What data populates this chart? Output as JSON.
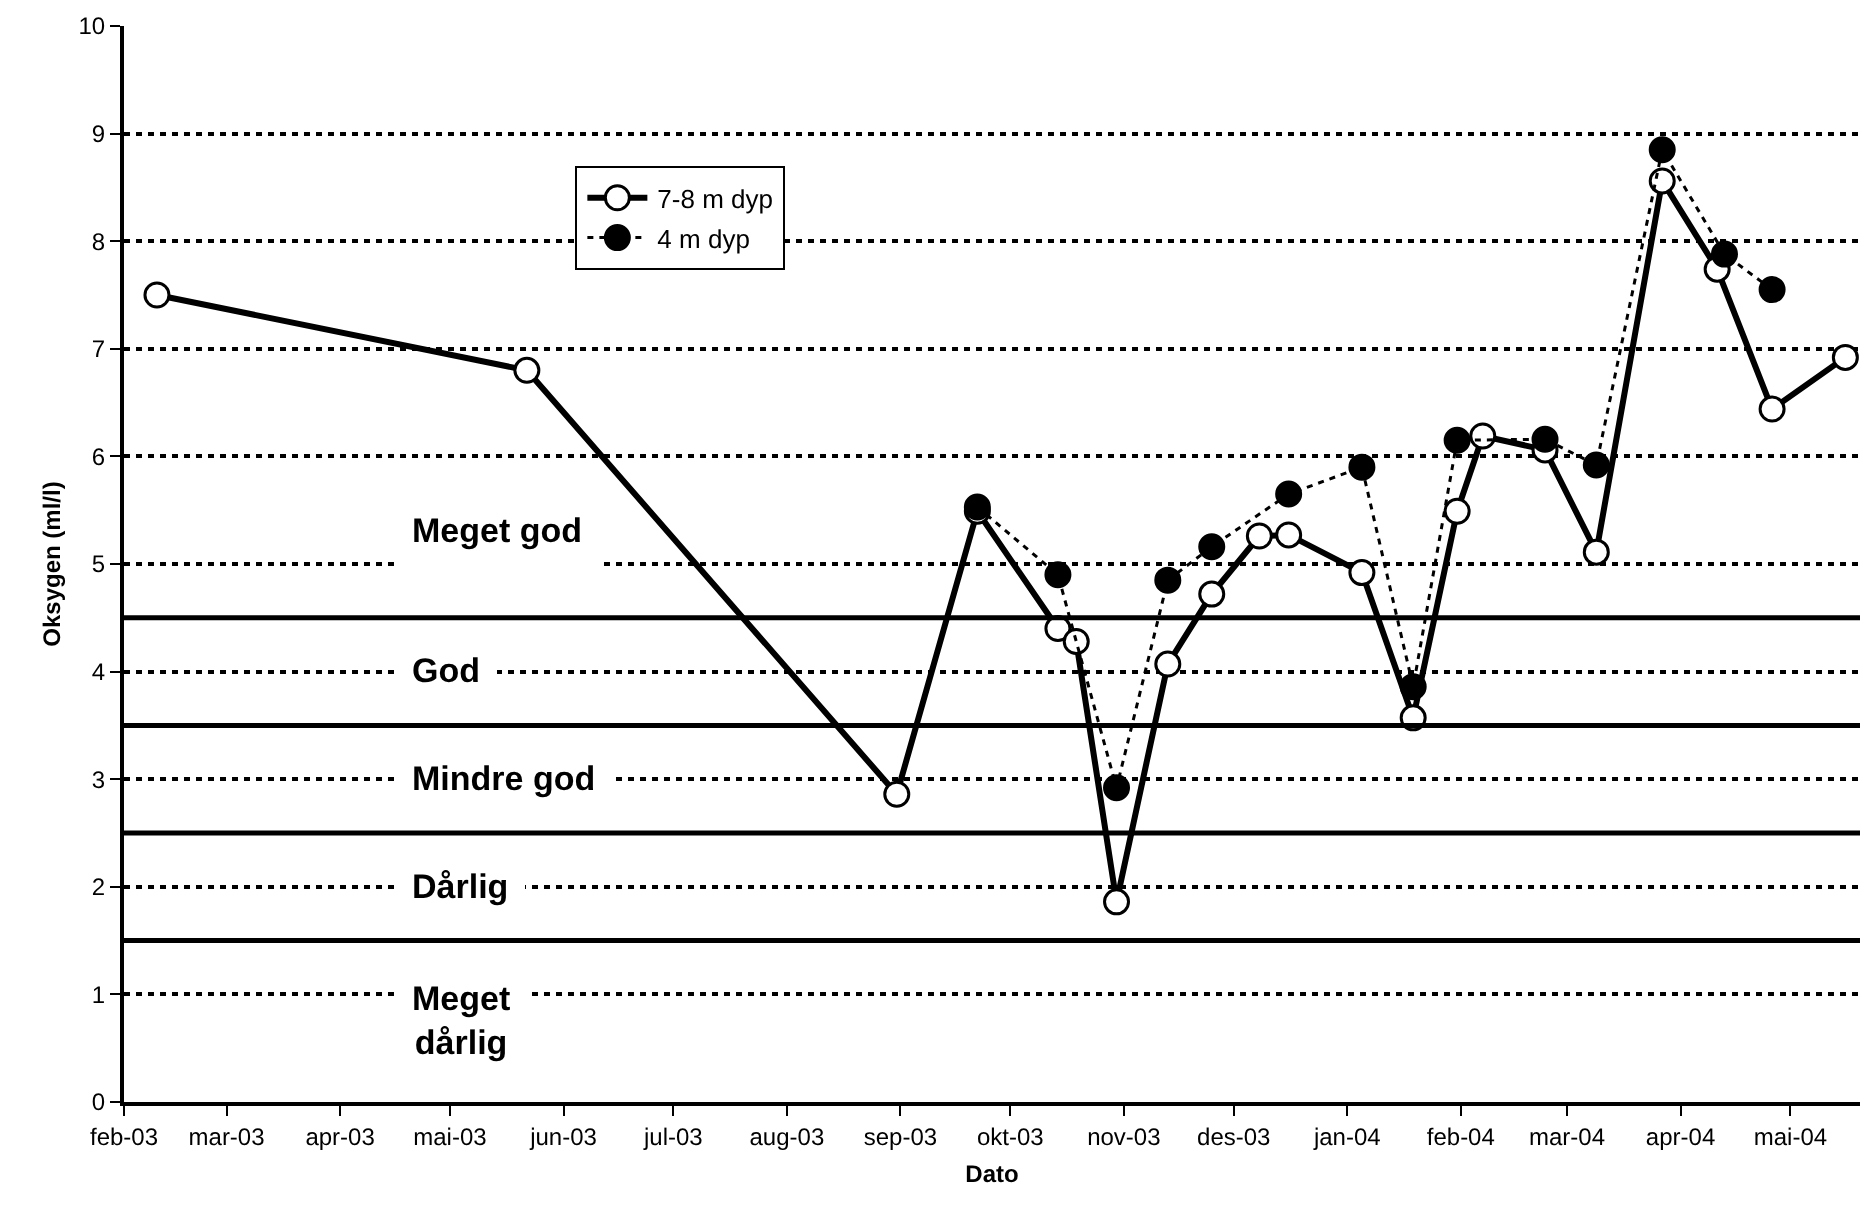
{
  "chart_data": {
    "type": "line",
    "xlabel": "Dato",
    "ylabel": "Oksygen (ml/l)",
    "xlim": [
      "2003-02-01",
      "2004-05-20"
    ],
    "xticks": [
      {
        "value": "2003-02-01",
        "label": "feb-03"
      },
      {
        "value": "2003-03-01",
        "label": "mar-03"
      },
      {
        "value": "2003-04-01",
        "label": "apr-03"
      },
      {
        "value": "2003-05-01",
        "label": "mai-03"
      },
      {
        "value": "2003-06-01",
        "label": "jun-03"
      },
      {
        "value": "2003-07-01",
        "label": "jul-03"
      },
      {
        "value": "2003-08-01",
        "label": "aug-03"
      },
      {
        "value": "2003-09-01",
        "label": "sep-03"
      },
      {
        "value": "2003-10-01",
        "label": "okt-03"
      },
      {
        "value": "2003-11-01",
        "label": "nov-03"
      },
      {
        "value": "2003-12-01",
        "label": "des-03"
      },
      {
        "value": "2004-01-01",
        "label": "jan-04"
      },
      {
        "value": "2004-02-01",
        "label": "feb-04"
      },
      {
        "value": "2004-03-01",
        "label": "mar-04"
      },
      {
        "value": "2004-04-01",
        "label": "apr-04"
      },
      {
        "value": "2004-05-01",
        "label": "mai-04"
      }
    ],
    "ylim": [
      0,
      10
    ],
    "yticks": [
      0,
      1,
      2,
      3,
      4,
      5,
      6,
      7,
      8,
      9,
      10
    ],
    "grid": "y",
    "legend": "top left",
    "marker": "circle",
    "series": [
      {
        "name": "7-8 m dyp",
        "color": "#000000",
        "line_style": "solid",
        "x": [
          "2003-02-10",
          "2003-05-22",
          "2003-08-31",
          "2003-09-22",
          "2003-10-14",
          "2003-10-19",
          "2003-10-30",
          "2003-11-13",
          "2003-11-25",
          "2003-12-08",
          "2003-12-16",
          "2004-01-05",
          "2004-01-19",
          "2004-01-31",
          "2004-02-07",
          "2004-02-24",
          "2004-03-09",
          "2004-03-27",
          "2004-04-11",
          "2004-04-26",
          "2004-05-16"
        ],
        "values": [
          7.5,
          6.8,
          2.86,
          5.49,
          4.4,
          4.28,
          1.86,
          4.07,
          4.72,
          5.26,
          5.27,
          4.92,
          3.57,
          5.49,
          6.19,
          6.06,
          5.11,
          8.56,
          7.74,
          6.44,
          6.92
        ]
      },
      {
        "name": "4 m dyp",
        "color": "#000000",
        "line_style": "dotted",
        "x": [
          "2003-09-22",
          "2003-10-14",
          "2003-10-30",
          "2003-11-13",
          "2003-11-25",
          "2003-12-16",
          "2004-01-05",
          "2004-01-19",
          "2004-01-31",
          "2004-02-24",
          "2004-03-09",
          "2004-03-27",
          "2004-04-13",
          "2004-04-26"
        ],
        "values": [
          5.53,
          4.9,
          2.92,
          4.85,
          5.16,
          5.65,
          5.9,
          3.86,
          6.15,
          6.16,
          5.92,
          8.85,
          7.88,
          7.55
        ]
      }
    ],
    "ref_lines": [
      {
        "axis": "y",
        "value": 4.5,
        "color": "#000000",
        "line_style": "solid"
      },
      {
        "axis": "y",
        "value": 3.5,
        "color": "#000000",
        "line_style": "solid"
      },
      {
        "axis": "y",
        "value": 2.5,
        "color": "#000000",
        "line_style": "solid"
      },
      {
        "axis": "y",
        "value": 1.5,
        "color": "#000000",
        "line_style": "solid"
      }
    ],
    "annotations": [
      "Meget god",
      "God",
      "Mindre god",
      "Dårlig",
      "Meget\ndårlig"
    ]
  }
}
